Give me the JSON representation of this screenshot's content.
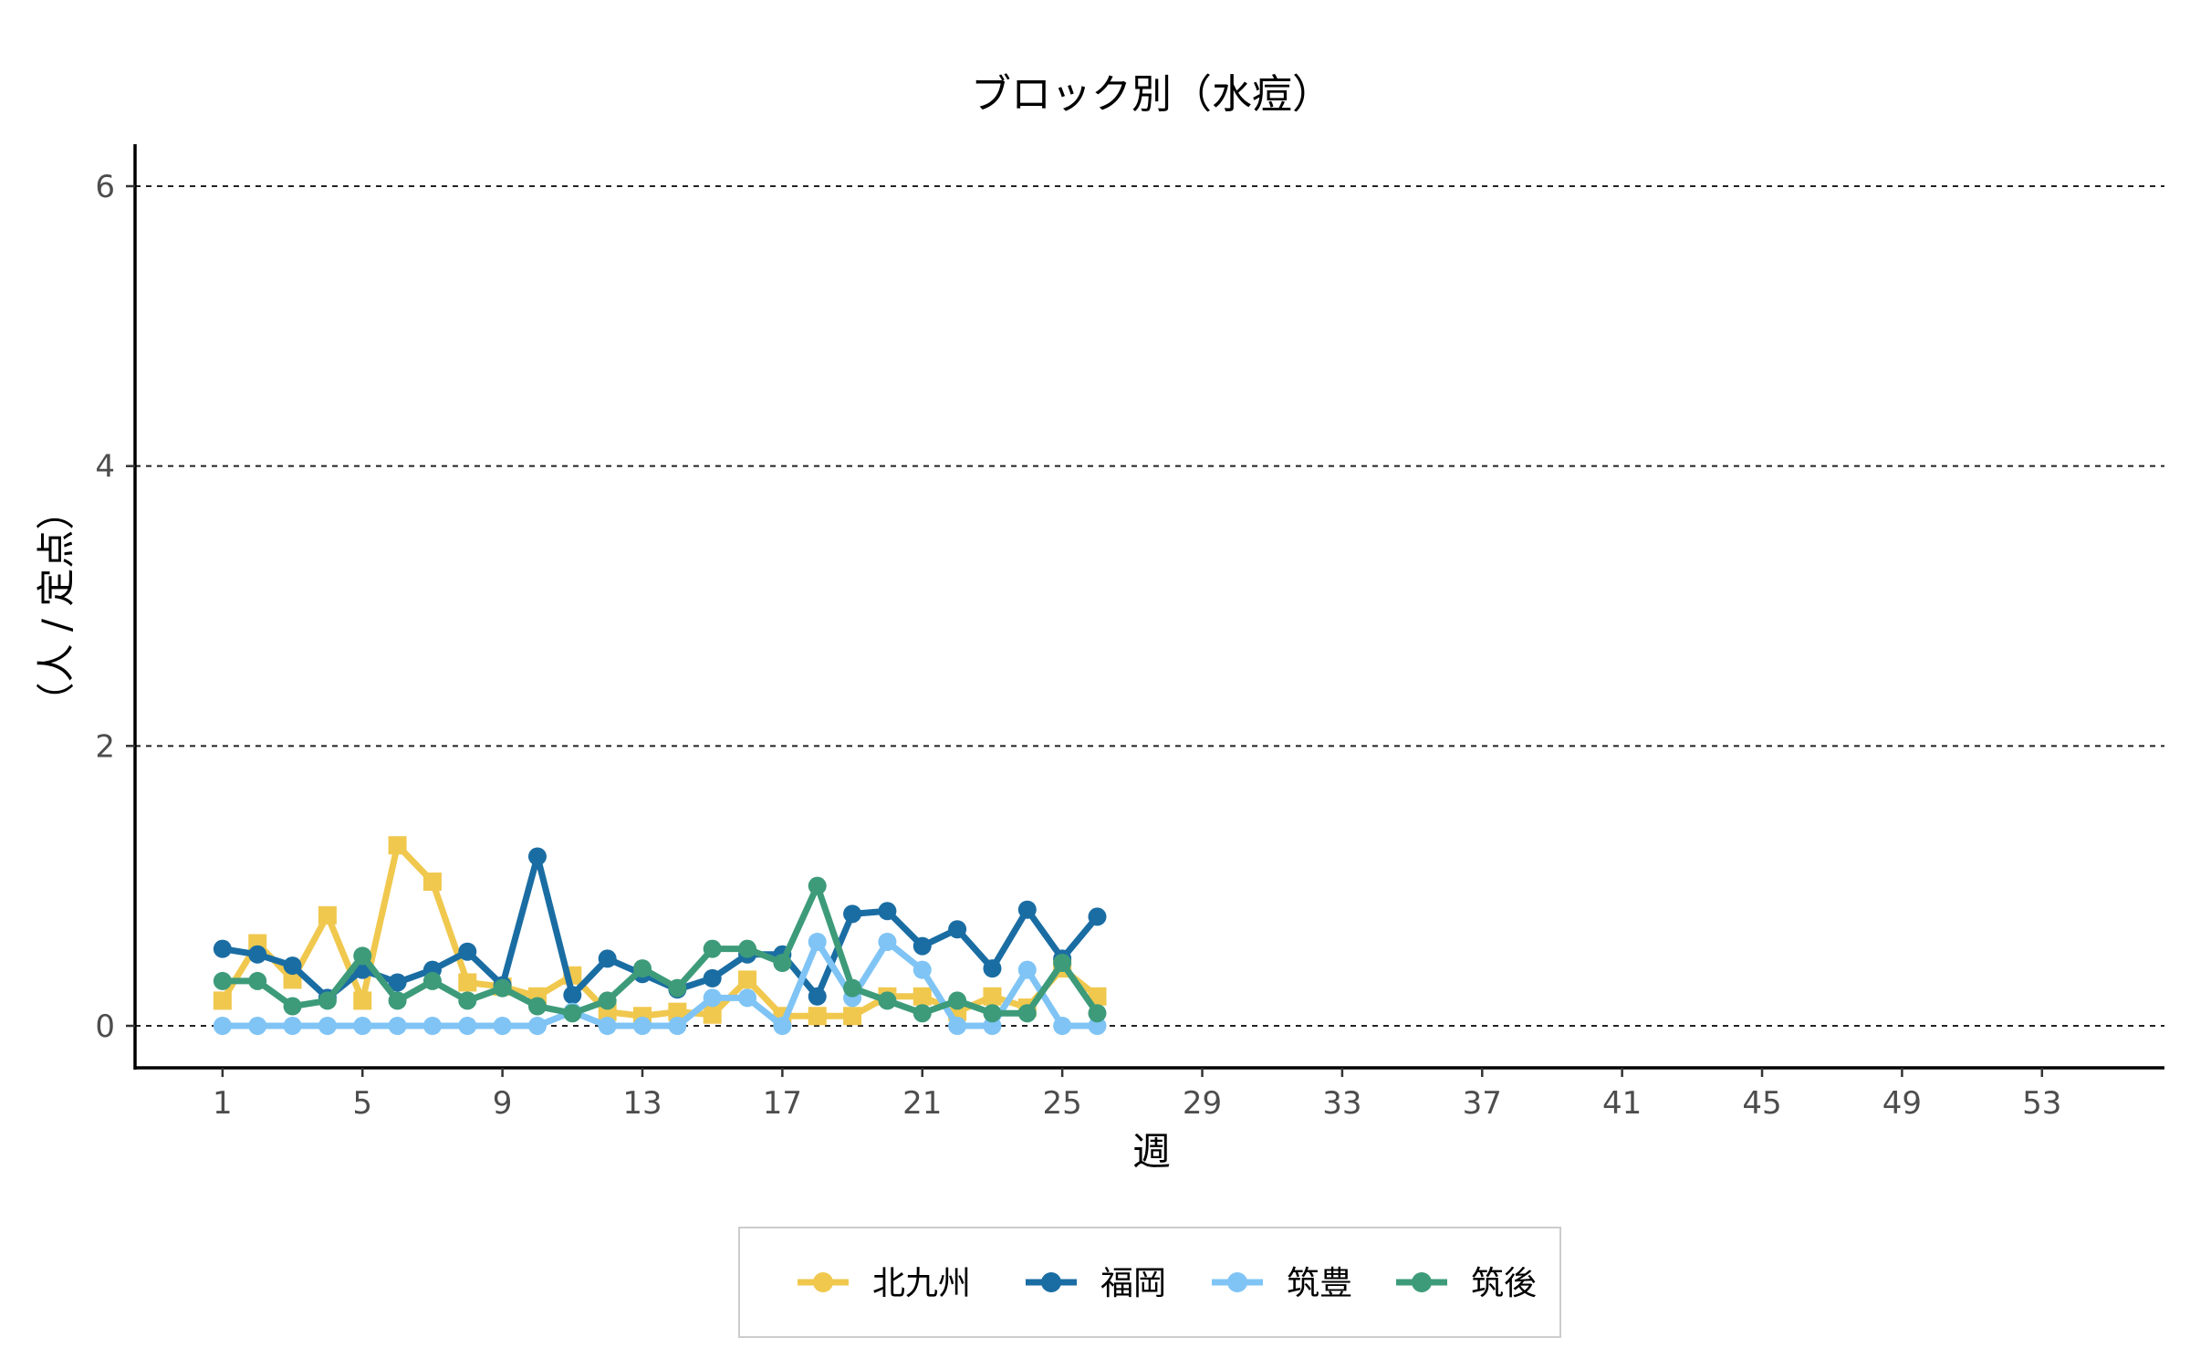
{
  "chart_data": {
    "type": "line",
    "title": "ブロック別（水痘）",
    "xlabel": "週",
    "ylabel": "（人 / 定点）",
    "xlim": [
      -1.5,
      56.5
    ],
    "ylim": [
      -0.3,
      6.3
    ],
    "x_ticks": [
      1,
      5,
      9,
      13,
      17,
      21,
      25,
      29,
      33,
      37,
      41,
      45,
      49,
      53
    ],
    "y_ticks": [
      0,
      2,
      4,
      6
    ],
    "grid": "horizontal dashed",
    "legend_position": "bottom",
    "x": [
      1,
      2,
      3,
      4,
      5,
      6,
      7,
      8,
      9,
      10,
      11,
      12,
      13,
      14,
      15,
      16,
      17,
      18,
      19,
      20,
      21,
      22,
      23,
      24,
      25,
      26
    ],
    "series": [
      {
        "name": "北九州",
        "color": "#F0C84E",
        "marker": "square",
        "values": [
          0.18,
          0.59,
          0.33,
          0.79,
          0.18,
          1.29,
          1.03,
          0.31,
          0.28,
          0.21,
          0.36,
          0.1,
          0.07,
          0.1,
          0.08,
          0.33,
          0.07,
          0.07,
          0.07,
          0.21,
          0.21,
          0.1,
          0.21,
          0.13,
          0.41,
          0.21
        ]
      },
      {
        "name": "福岡",
        "color": "#1A6DA3",
        "marker": "circle",
        "values": [
          0.55,
          0.51,
          0.43,
          0.2,
          0.4,
          0.31,
          0.4,
          0.53,
          0.29,
          1.21,
          0.22,
          0.48,
          0.37,
          0.26,
          0.34,
          0.51,
          0.51,
          0.21,
          0.8,
          0.82,
          0.57,
          0.69,
          0.41,
          0.83,
          0.48,
          0.78
        ]
      },
      {
        "name": "筑豊",
        "color": "#7FC4F5",
        "marker": "circle",
        "values": [
          0,
          0,
          0,
          0,
          0,
          0,
          0,
          0,
          0,
          0,
          0.1,
          0,
          0,
          0,
          0.2,
          0.2,
          0,
          0.6,
          0.2,
          0.6,
          0.4,
          0,
          0,
          0.4,
          0,
          0
        ]
      },
      {
        "name": "筑後",
        "color": "#3D9B7A",
        "marker": "circle",
        "values": [
          0.32,
          0.32,
          0.14,
          0.18,
          0.5,
          0.18,
          0.32,
          0.18,
          0.27,
          0.14,
          0.09,
          0.18,
          0.41,
          0.27,
          0.55,
          0.55,
          0.45,
          1.0,
          0.27,
          0.18,
          0.09,
          0.18,
          0.09,
          0.09,
          0.45,
          0.09
        ]
      }
    ]
  }
}
